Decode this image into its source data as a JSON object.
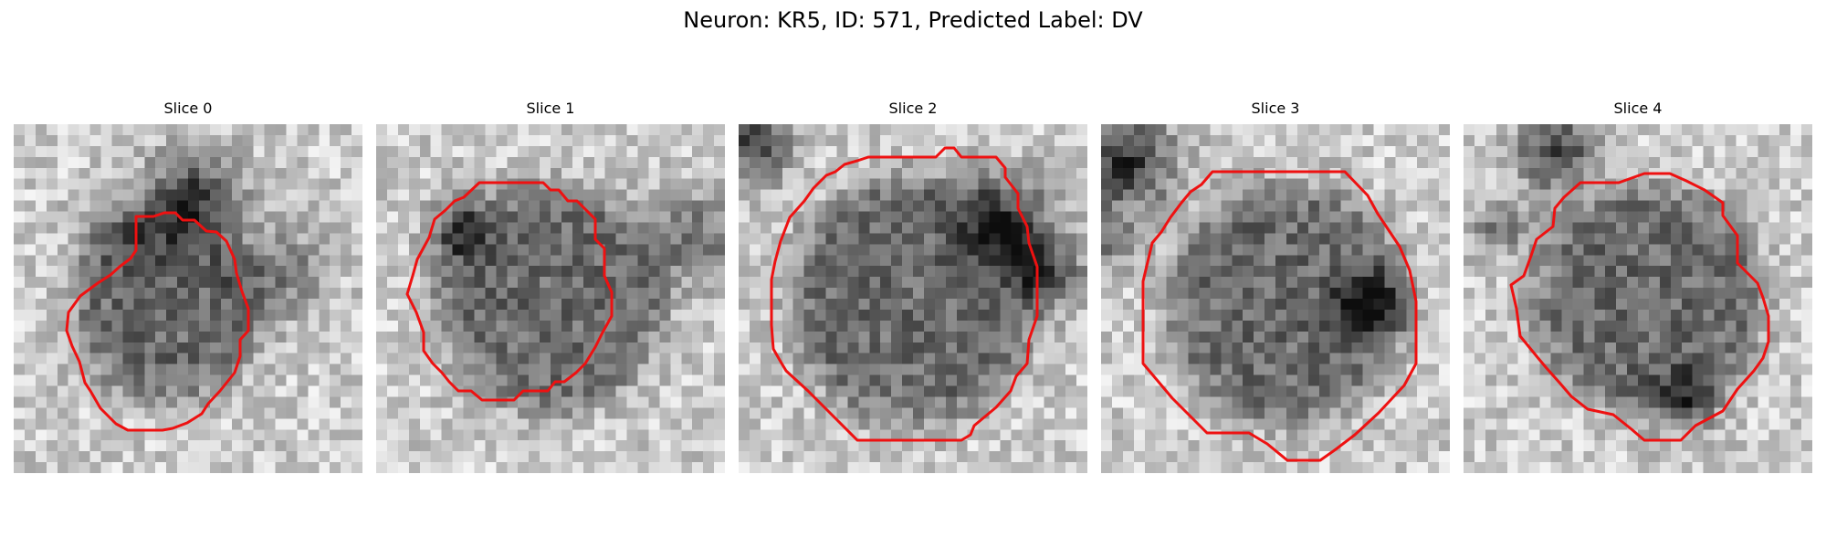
{
  "figure": {
    "title": "Neuron: KR5, ID: 571, Predicted Label: DV"
  },
  "colors": {
    "contour": "#ee1111",
    "background": "#ffffff"
  },
  "panels": [
    {
      "title": "Slice 0"
    },
    {
      "title": "Slice 1"
    },
    {
      "title": "Slice 2"
    },
    {
      "title": "Slice 3"
    },
    {
      "title": "Slice 4"
    }
  ]
}
